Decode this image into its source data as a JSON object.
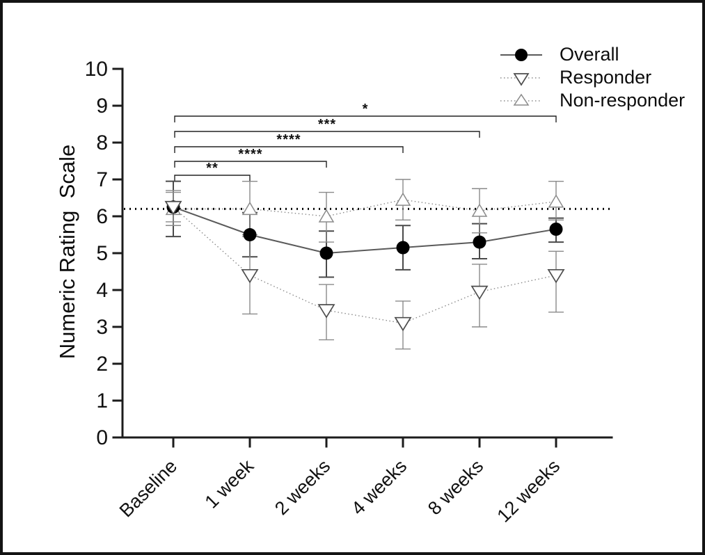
{
  "frame": {
    "border_color": "#141414",
    "background": "#ffffff"
  },
  "chart_data": {
    "type": "line",
    "title": "",
    "xlabel": "",
    "ylabel": "Numeric Rating  Scale",
    "categories": [
      "Baseline",
      "1 week",
      "2 weeks",
      "4 weeks",
      "8 weeks",
      "12 weeks"
    ],
    "ylim": [
      0,
      10
    ],
    "yticks": [
      0,
      1,
      2,
      3,
      4,
      5,
      6,
      7,
      8,
      9,
      10
    ],
    "grid": false,
    "reference_line": {
      "y": 6.2,
      "style": "dotted",
      "color": "#000000"
    },
    "series": [
      {
        "name": "Overall",
        "marker": "filled-circle",
        "line_style": "solid",
        "line_color": "#5a5a5a",
        "marker_color": "#000000",
        "values": [
          6.25,
          5.5,
          5.0,
          5.15,
          5.3,
          5.65
        ],
        "err_low": [
          5.45,
          4.9,
          4.35,
          4.55,
          4.85,
          5.3
        ],
        "err_high": [
          6.95,
          6.1,
          5.6,
          5.75,
          5.8,
          5.95
        ]
      },
      {
        "name": "Responder",
        "marker": "open-triangle-down",
        "line_style": "dotted",
        "line_color": "#8a8a8a",
        "marker_color": "#4d4d4d",
        "values": [
          6.25,
          4.4,
          3.45,
          3.1,
          3.95,
          4.4
        ],
        "err_low": [
          5.85,
          3.35,
          2.65,
          2.4,
          3.0,
          3.4
        ],
        "err_high": [
          6.7,
          5.5,
          4.15,
          3.7,
          4.7,
          5.05
        ]
      },
      {
        "name": "Non-responder",
        "marker": "open-triangle-up",
        "line_style": "dotted",
        "line_color": "#8a8a8a",
        "marker_color": "#8a8a8a",
        "values": [
          6.2,
          6.2,
          6.0,
          6.45,
          6.15,
          6.4
        ],
        "err_low": [
          5.75,
          5.45,
          5.3,
          5.9,
          5.55,
          5.9
        ],
        "err_high": [
          6.65,
          6.95,
          6.65,
          7.0,
          6.75,
          6.95
        ]
      }
    ],
    "significance": [
      {
        "from": "Baseline",
        "to": "1 week",
        "label": "**"
      },
      {
        "from": "Baseline",
        "to": "2 weeks",
        "label": "****"
      },
      {
        "from": "Baseline",
        "to": "4 weeks",
        "label": "****"
      },
      {
        "from": "Baseline",
        "to": "8 weeks",
        "label": "***"
      },
      {
        "from": "Baseline",
        "to": "12 weeks",
        "label": "*"
      }
    ],
    "legend": {
      "position": "top-right",
      "items": [
        "Overall",
        "Responder",
        "Non-responder"
      ]
    }
  }
}
